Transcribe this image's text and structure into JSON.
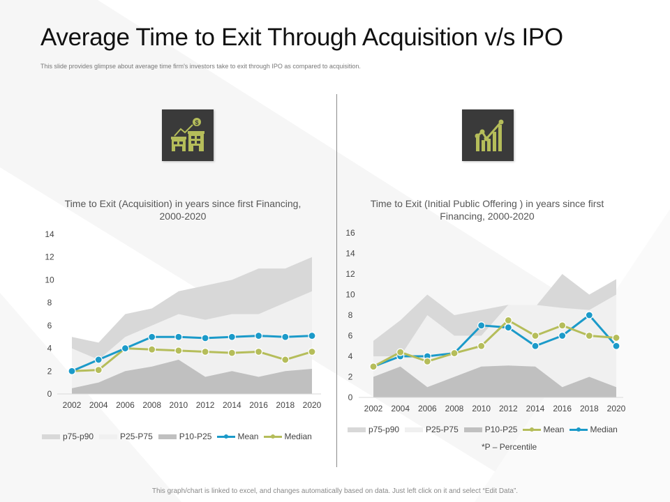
{
  "slide": {
    "title": "Average Time to Exit Through Acquisition v/s IPO",
    "subtitle": "This slide provides glimpse about average time  firm's investors take to exit through IPO  as compared to acquisition.",
    "footer": "This graph/chart is linked to excel,  and changes automatically based on data. Just left click on it and select “Edit Data”.",
    "percentile_note": "*P – Percentile",
    "icons": {
      "left": "buildings-growth-dollar-icon",
      "right": "bar-chart-growth-icon"
    },
    "colors": {
      "icon_bg": "#3a3a3a",
      "icon_fg": "#b5bd5a",
      "band_p75_p90": "#d8d8d8",
      "band_p25_p75": "#f0f0f0",
      "band_p10_p25": "#c0c0c0",
      "blue_line": "#1b9ac9",
      "green_line": "#b5bd5a"
    }
  },
  "chart_data": [
    {
      "type": "area",
      "title": "Time to Exit (Acquisition) in years since first Financing, 2000-2020",
      "xlabel": "",
      "ylabel": "",
      "x": [
        "2002",
        "2004",
        "2006",
        "2008",
        "2010",
        "2012",
        "2014",
        "2016",
        "2018",
        "2020"
      ],
      "ylim": [
        0,
        14
      ],
      "yticks": [
        "0",
        "2",
        "4",
        "6",
        "8",
        "10",
        "12",
        "14"
      ],
      "grid": false,
      "legend_position": "bottom",
      "bands": [
        {
          "name": "p75-p90",
          "color": "#d8d8d8",
          "top": [
            5,
            4.5,
            7,
            7.5,
            9,
            9.5,
            10,
            11,
            11,
            12
          ]
        },
        {
          "name": "P25-P75",
          "color": "#f0f0f0",
          "top": [
            4,
            3,
            5,
            6,
            7,
            6.5,
            7,
            7,
            8,
            9
          ]
        },
        {
          "name": "P10-P25",
          "color": "#c0c0c0",
          "top": [
            0.5,
            1,
            2,
            2.4,
            3,
            1.5,
            2,
            1.5,
            2,
            2.2
          ]
        }
      ],
      "series": [
        {
          "name": "Mean",
          "color": "#1b9ac9",
          "values": [
            2,
            3,
            4,
            5,
            5,
            4.9,
            5,
            5.1,
            5,
            5.1
          ]
        },
        {
          "name": "Median",
          "color": "#b5bd5a",
          "values": [
            2,
            2.1,
            4,
            3.9,
            3.8,
            3.7,
            3.6,
            3.7,
            3,
            3.7
          ]
        }
      ],
      "legend": [
        "p75-p90",
        "P25-P75",
        "P10-P25",
        "Mean",
        "Median"
      ]
    },
    {
      "type": "area",
      "title": "Time to Exit (Initial Public Offering ) in years since first Financing, 2000-2020",
      "xlabel": "",
      "ylabel": "",
      "x": [
        "2002",
        "2004",
        "2006",
        "2008",
        "2010",
        "2012",
        "2014",
        "2016",
        "2018",
        "2020"
      ],
      "ylim": [
        0,
        16
      ],
      "yticks": [
        "0",
        "2",
        "4",
        "6",
        "8",
        "10",
        "12",
        "14",
        "16"
      ],
      "grid": false,
      "legend_position": "bottom",
      "bands": [
        {
          "name": "p75-p90",
          "color": "#d8d8d8",
          "top": [
            5.5,
            7.5,
            10,
            8,
            8.5,
            9,
            8.8,
            12,
            10,
            11.5
          ]
        },
        {
          "name": "P25-P75",
          "color": "#f0f0f0",
          "top": [
            4,
            4,
            8,
            6,
            6,
            9,
            9,
            8.7,
            8.5,
            10
          ]
        },
        {
          "name": "P10-P25",
          "color": "#c0c0c0",
          "top": [
            2,
            3,
            1,
            2,
            3,
            3.1,
            3,
            1,
            2,
            1
          ]
        }
      ],
      "series": [
        {
          "name": "Mean",
          "color": "#b5bd5a",
          "values": [
            3,
            4.4,
            3.5,
            4.3,
            5,
            7.5,
            6,
            7,
            6,
            5.8
          ]
        },
        {
          "name": "Median",
          "color": "#1b9ac9",
          "values": [
            3,
            4,
            4,
            4.3,
            7,
            6.8,
            5,
            6,
            8,
            5
          ]
        }
      ],
      "legend": [
        "p75-p90",
        "P25-P75",
        "P10-P25",
        "Mean",
        "Median"
      ]
    }
  ]
}
